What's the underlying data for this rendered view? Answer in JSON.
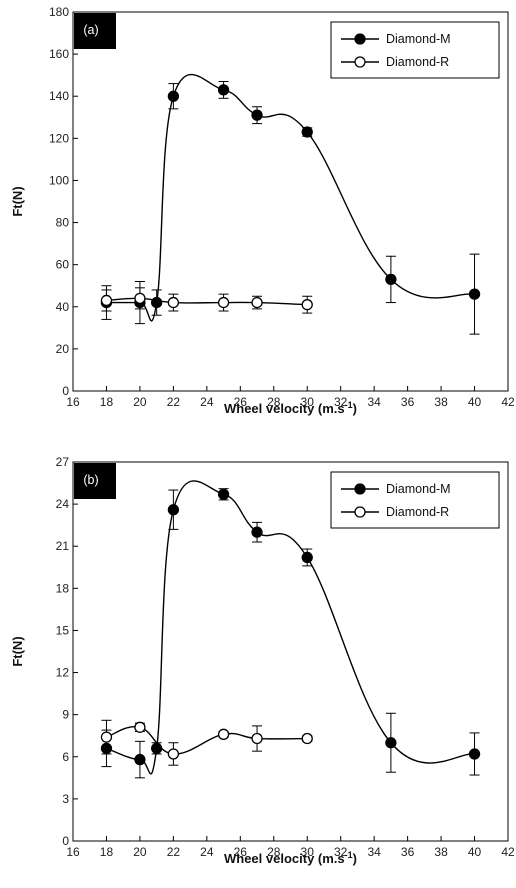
{
  "chart_data": [
    {
      "type": "line",
      "panel_label": "(a)",
      "xlabel": "Wheel velocity (m.s",
      "xlabel_sup": "-1",
      "xlabel_end": ")",
      "ylabel": "Ft(N)",
      "xlim": [
        16,
        42
      ],
      "ylim": [
        0,
        180
      ],
      "xticks": [
        "16",
        "18",
        "20",
        "22",
        "24",
        "26",
        "28",
        "30",
        "32",
        "34",
        "36",
        "38",
        "40",
        "42"
      ],
      "yticks": [
        "0",
        "20",
        "40",
        "60",
        "80",
        "100",
        "120",
        "140",
        "160",
        "180"
      ],
      "legend_position": "top-right",
      "series": [
        {
          "name": "Diamond-M",
          "marker": "filled",
          "x": [
            18,
            20,
            21,
            22,
            25,
            27,
            30,
            35,
            40
          ],
          "y": [
            42,
            42,
            42,
            140,
            143,
            131,
            123,
            53,
            46
          ],
          "err": [
            8,
            10,
            6,
            6,
            4,
            4,
            2,
            11,
            19
          ]
        },
        {
          "name": "Diamond-R",
          "marker": "open",
          "x": [
            18,
            20,
            22,
            25,
            27,
            30
          ],
          "y": [
            43,
            44,
            42,
            42,
            42,
            41
          ],
          "err": [
            5,
            5,
            4,
            4,
            3,
            4
          ]
        }
      ]
    },
    {
      "type": "line",
      "panel_label": "(b)",
      "xlabel": "Wheel velocity (m.s",
      "xlabel_sup": "-1",
      "xlabel_end": ")",
      "ylabel": "Ft(N)",
      "xlim": [
        16,
        42
      ],
      "ylim": [
        0,
        27
      ],
      "xticks": [
        "16",
        "18",
        "20",
        "22",
        "24",
        "26",
        "28",
        "30",
        "32",
        "34",
        "36",
        "38",
        "40",
        "42"
      ],
      "yticks": [
        "0",
        "3",
        "6",
        "9",
        "12",
        "15",
        "18",
        "21",
        "24",
        "27"
      ],
      "legend_position": "top-right",
      "series": [
        {
          "name": "Diamond-M",
          "marker": "filled",
          "x": [
            18,
            20,
            21,
            22,
            25,
            27,
            30,
            35,
            40
          ],
          "y": [
            6.6,
            5.8,
            6.6,
            23.6,
            24.7,
            22.0,
            20.2,
            7.0,
            6.2
          ],
          "err": [
            1.3,
            1.3,
            0.4,
            1.4,
            0.4,
            0.7,
            0.6,
            2.1,
            1.5
          ]
        },
        {
          "name": "Diamond-R",
          "marker": "open",
          "x": [
            18,
            20,
            22,
            25,
            27,
            30
          ],
          "y": [
            7.4,
            8.1,
            6.2,
            7.6,
            7.3,
            7.3
          ],
          "err": [
            1.2,
            0.3,
            0.8,
            0.2,
            0.9,
            0.2
          ]
        }
      ]
    }
  ]
}
